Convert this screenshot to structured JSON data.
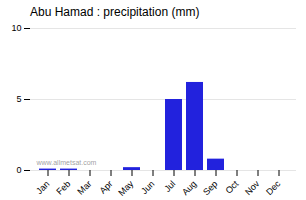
{
  "chart_data": {
    "type": "bar",
    "title": "Abu Hamad : precipitation (mm)",
    "categories": [
      "Jan",
      "Feb",
      "Mar",
      "Apr",
      "May",
      "Jun",
      "Jul",
      "Aug",
      "Sep",
      "Oct",
      "Nov",
      "Dec"
    ],
    "values": [
      0.1,
      0.1,
      0.0,
      0.0,
      0.2,
      0.0,
      5.0,
      6.2,
      0.8,
      0.0,
      0.0,
      0.0
    ],
    "color": "#2222dd",
    "ylim": [
      0,
      10
    ],
    "yticks": [
      0,
      5,
      10
    ],
    "grid": true,
    "annotations": [
      "www.allmetsat.com"
    ]
  }
}
